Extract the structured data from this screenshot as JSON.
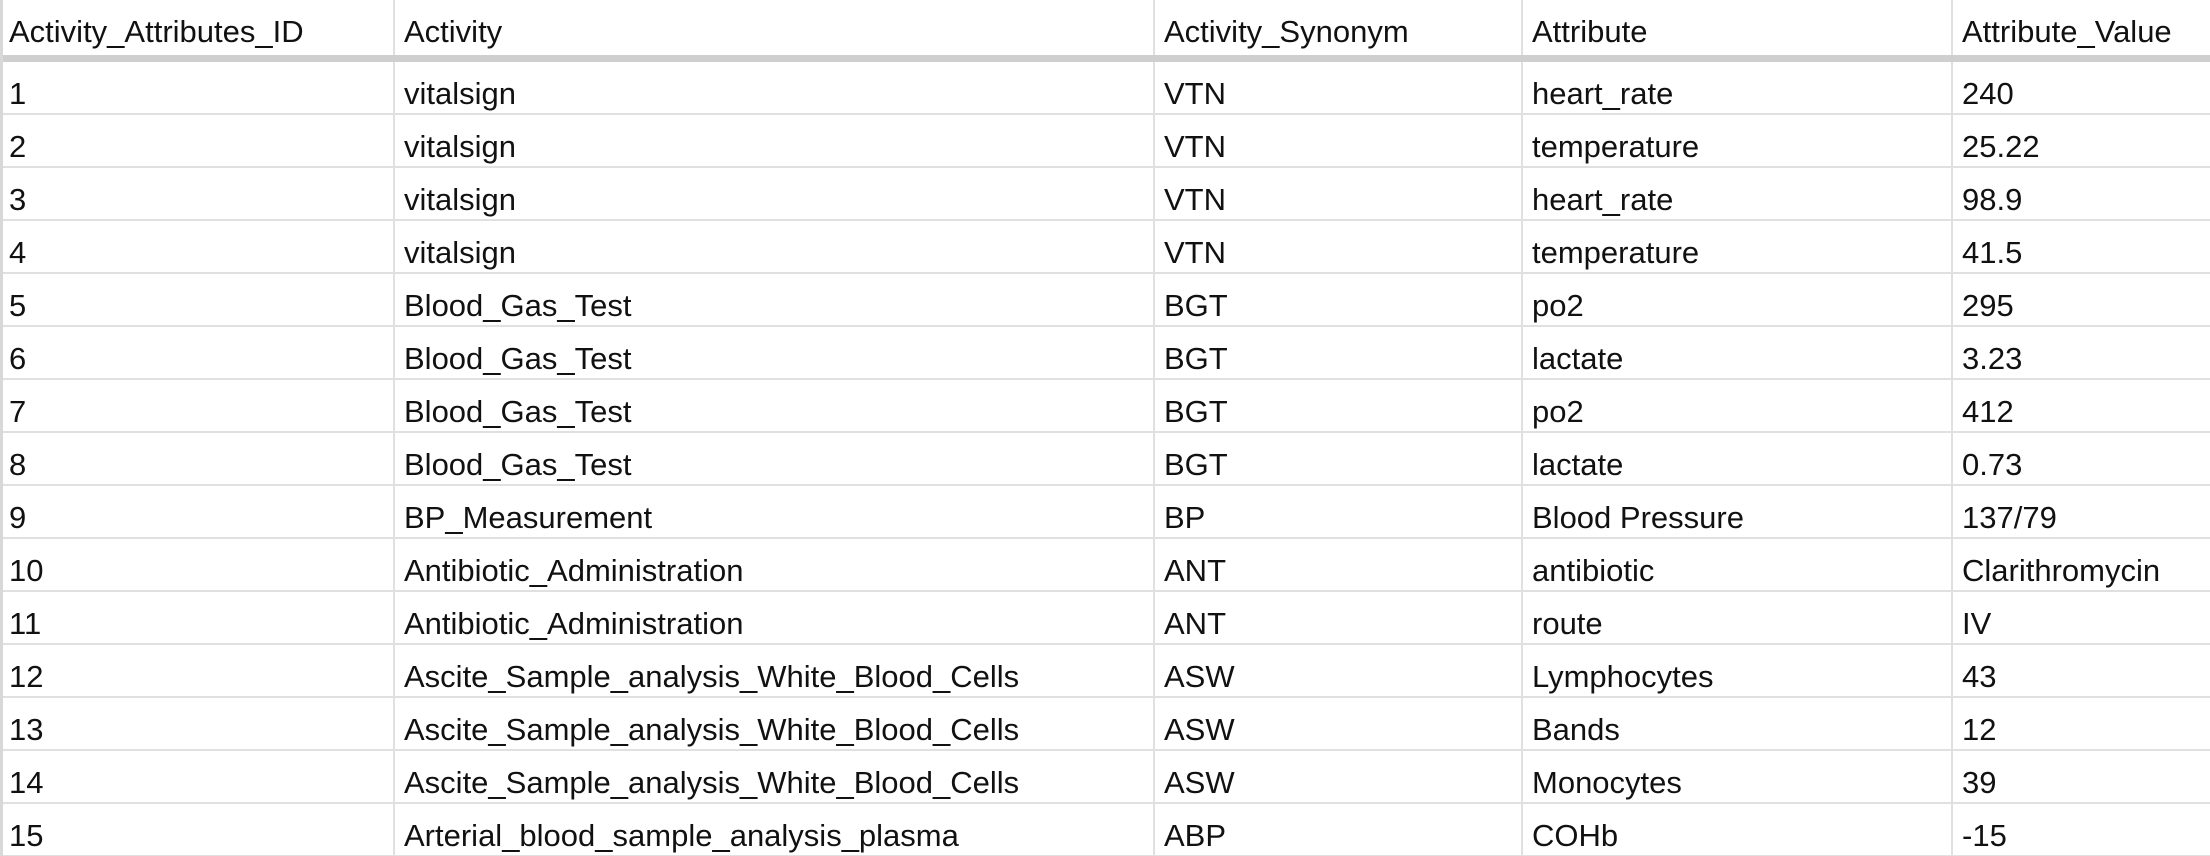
{
  "sheet": {
    "headers": [
      "Activity_Attributes_ID",
      "Activity",
      "Activity_Synonym",
      "Attribute",
      "Attribute_Value"
    ],
    "rows": [
      [
        "1",
        "vitalsign",
        "VTN",
        "heart_rate",
        "240"
      ],
      [
        "2",
        "vitalsign",
        "VTN",
        "temperature",
        "25.22"
      ],
      [
        "3",
        "vitalsign",
        "VTN",
        "heart_rate",
        "98.9"
      ],
      [
        "4",
        "vitalsign",
        "VTN",
        "temperature",
        "41.5"
      ],
      [
        "5",
        "Blood_Gas_Test",
        "BGT",
        "po2",
        "295"
      ],
      [
        "6",
        "Blood_Gas_Test",
        "BGT",
        "lactate",
        "3.23"
      ],
      [
        "7",
        "Blood_Gas_Test",
        "BGT",
        "po2",
        "412"
      ],
      [
        "8",
        "Blood_Gas_Test",
        "BGT",
        "lactate",
        "0.73"
      ],
      [
        "9",
        "BP_Measurement",
        "BP",
        "Blood Pressure",
        "137/79"
      ],
      [
        "10",
        "Antibiotic_Administration",
        "ANT",
        "antibiotic",
        "Clarithromycin"
      ],
      [
        "11",
        "Antibiotic_Administration",
        "ANT",
        "route",
        "IV"
      ],
      [
        "12",
        "Ascite_Sample_analysis_White_Blood_Cells",
        "ASW",
        "Lymphocytes",
        "43"
      ],
      [
        "13",
        "Ascite_Sample_analysis_White_Blood_Cells",
        "ASW",
        "Bands",
        "12"
      ],
      [
        "14",
        "Ascite_Sample_analysis_White_Blood_Cells",
        "ASW",
        "Monocytes",
        "39"
      ],
      [
        "15",
        "Arterial_blood_sample_analysis_plasma",
        "ABP",
        "COHb",
        "-15"
      ]
    ]
  }
}
